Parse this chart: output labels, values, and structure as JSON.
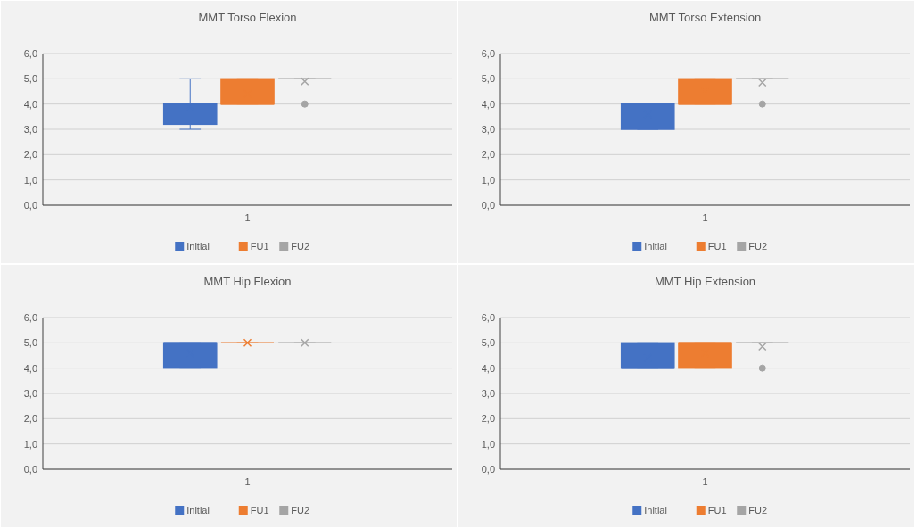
{
  "chart_data": [
    {
      "type": "box",
      "title": "MMT Torso Flexion",
      "categories": [
        "1"
      ],
      "ylim": [
        0,
        6
      ],
      "yticks": [
        {
          "value": 0,
          "label": "0,0"
        },
        {
          "value": 1,
          "label": "1,0"
        },
        {
          "value": 2,
          "label": "2,0"
        },
        {
          "value": 3,
          "label": "3,0"
        },
        {
          "value": 4,
          "label": "4,0"
        },
        {
          "value": 5,
          "label": "5,0"
        },
        {
          "value": 6,
          "label": "6,0"
        }
      ],
      "grid": "y",
      "legend": "bottom",
      "series": [
        {
          "name": "Initial",
          "color": "#4472c4",
          "boxes": [
            {
              "low": 3.0,
              "q1": 3.2,
              "median": 4.0,
              "q3": 4.0,
              "high": 5.0,
              "mean": 3.9
            }
          ]
        },
        {
          "name": "FU1",
          "color": "#ed7d31",
          "boxes": [
            {
              "low": 4.0,
              "q1": 4.0,
              "median": 4.0,
              "q3": 5.0,
              "high": 5.0,
              "mean": 4.4
            }
          ]
        },
        {
          "name": "FU2",
          "color": "#a5a5a5",
          "boxes": [
            {
              "low": 5.0,
              "q1": 5.0,
              "median": 5.0,
              "q3": 5.0,
              "high": 5.0,
              "mean": 4.9,
              "outliers": [
                4.0
              ]
            }
          ]
        }
      ]
    },
    {
      "type": "box",
      "title": "MMT Torso Extension",
      "categories": [
        "1"
      ],
      "ylim": [
        0,
        6
      ],
      "yticks": [
        {
          "value": 0,
          "label": "0,0"
        },
        {
          "value": 1,
          "label": "1,0"
        },
        {
          "value": 2,
          "label": "2,0"
        },
        {
          "value": 3,
          "label": "3,0"
        },
        {
          "value": 4,
          "label": "4,0"
        },
        {
          "value": 5,
          "label": "5,0"
        },
        {
          "value": 6,
          "label": "6,0"
        }
      ],
      "grid": "y",
      "legend": "bottom",
      "series": [
        {
          "name": "Initial",
          "color": "#4472c4",
          "boxes": [
            {
              "low": 3.0,
              "q1": 3.0,
              "median": 4.0,
              "q3": 4.0,
              "high": 4.0,
              "mean": 3.6
            }
          ]
        },
        {
          "name": "FU1",
          "color": "#ed7d31",
          "boxes": [
            {
              "low": 4.0,
              "q1": 4.0,
              "median": 4.0,
              "q3": 5.0,
              "high": 5.0,
              "mean": 4.5
            }
          ]
        },
        {
          "name": "FU2",
          "color": "#a5a5a5",
          "boxes": [
            {
              "low": 5.0,
              "q1": 5.0,
              "median": 5.0,
              "q3": 5.0,
              "high": 5.0,
              "mean": 4.85,
              "outliers": [
                4.0
              ]
            }
          ]
        }
      ]
    },
    {
      "type": "box",
      "title": "MMT Hip Flexion",
      "categories": [
        "1"
      ],
      "ylim": [
        0,
        6
      ],
      "yticks": [
        {
          "value": 0,
          "label": "0,0"
        },
        {
          "value": 1,
          "label": "1,0"
        },
        {
          "value": 2,
          "label": "2,0"
        },
        {
          "value": 3,
          "label": "3,0"
        },
        {
          "value": 4,
          "label": "4,0"
        },
        {
          "value": 5,
          "label": "5,0"
        },
        {
          "value": 6,
          "label": "6,0"
        }
      ],
      "grid": "y",
      "legend": "bottom",
      "series": [
        {
          "name": "Initial",
          "color": "#4472c4",
          "boxes": [
            {
              "low": 4.0,
              "q1": 4.0,
              "median": 5.0,
              "q3": 5.0,
              "high": 5.0,
              "mean": 4.6
            }
          ]
        },
        {
          "name": "FU1",
          "color": "#ed7d31",
          "boxes": [
            {
              "low": 5.0,
              "q1": 5.0,
              "median": 5.0,
              "q3": 5.0,
              "high": 5.0,
              "mean": 5.0
            }
          ]
        },
        {
          "name": "FU2",
          "color": "#a5a5a5",
          "boxes": [
            {
              "low": 5.0,
              "q1": 5.0,
              "median": 5.0,
              "q3": 5.0,
              "high": 5.0,
              "mean": 5.0
            }
          ]
        }
      ]
    },
    {
      "type": "box",
      "title": "MMT Hip Extension",
      "categories": [
        "1"
      ],
      "ylim": [
        0,
        6
      ],
      "yticks": [
        {
          "value": 0,
          "label": "0,0"
        },
        {
          "value": 1,
          "label": "1,0"
        },
        {
          "value": 2,
          "label": "2,0"
        },
        {
          "value": 3,
          "label": "3,0"
        },
        {
          "value": 4,
          "label": "4,0"
        },
        {
          "value": 5,
          "label": "5,0"
        },
        {
          "value": 6,
          "label": "6,0"
        }
      ],
      "grid": "y",
      "legend": "bottom",
      "series": [
        {
          "name": "Initial",
          "color": "#4472c4",
          "boxes": [
            {
              "low": 4.0,
              "q1": 4.0,
              "median": 4.0,
              "q3": 5.0,
              "high": 5.0,
              "mean": 4.4
            }
          ]
        },
        {
          "name": "FU1",
          "color": "#ed7d31",
          "boxes": [
            {
              "low": 4.0,
              "q1": 4.0,
              "median": 5.0,
              "q3": 5.0,
              "high": 5.0,
              "mean": 4.6
            }
          ]
        },
        {
          "name": "FU2",
          "color": "#a5a5a5",
          "boxes": [
            {
              "low": 5.0,
              "q1": 5.0,
              "median": 5.0,
              "q3": 5.0,
              "high": 5.0,
              "mean": 4.85,
              "outliers": [
                4.0
              ]
            }
          ]
        }
      ]
    }
  ]
}
